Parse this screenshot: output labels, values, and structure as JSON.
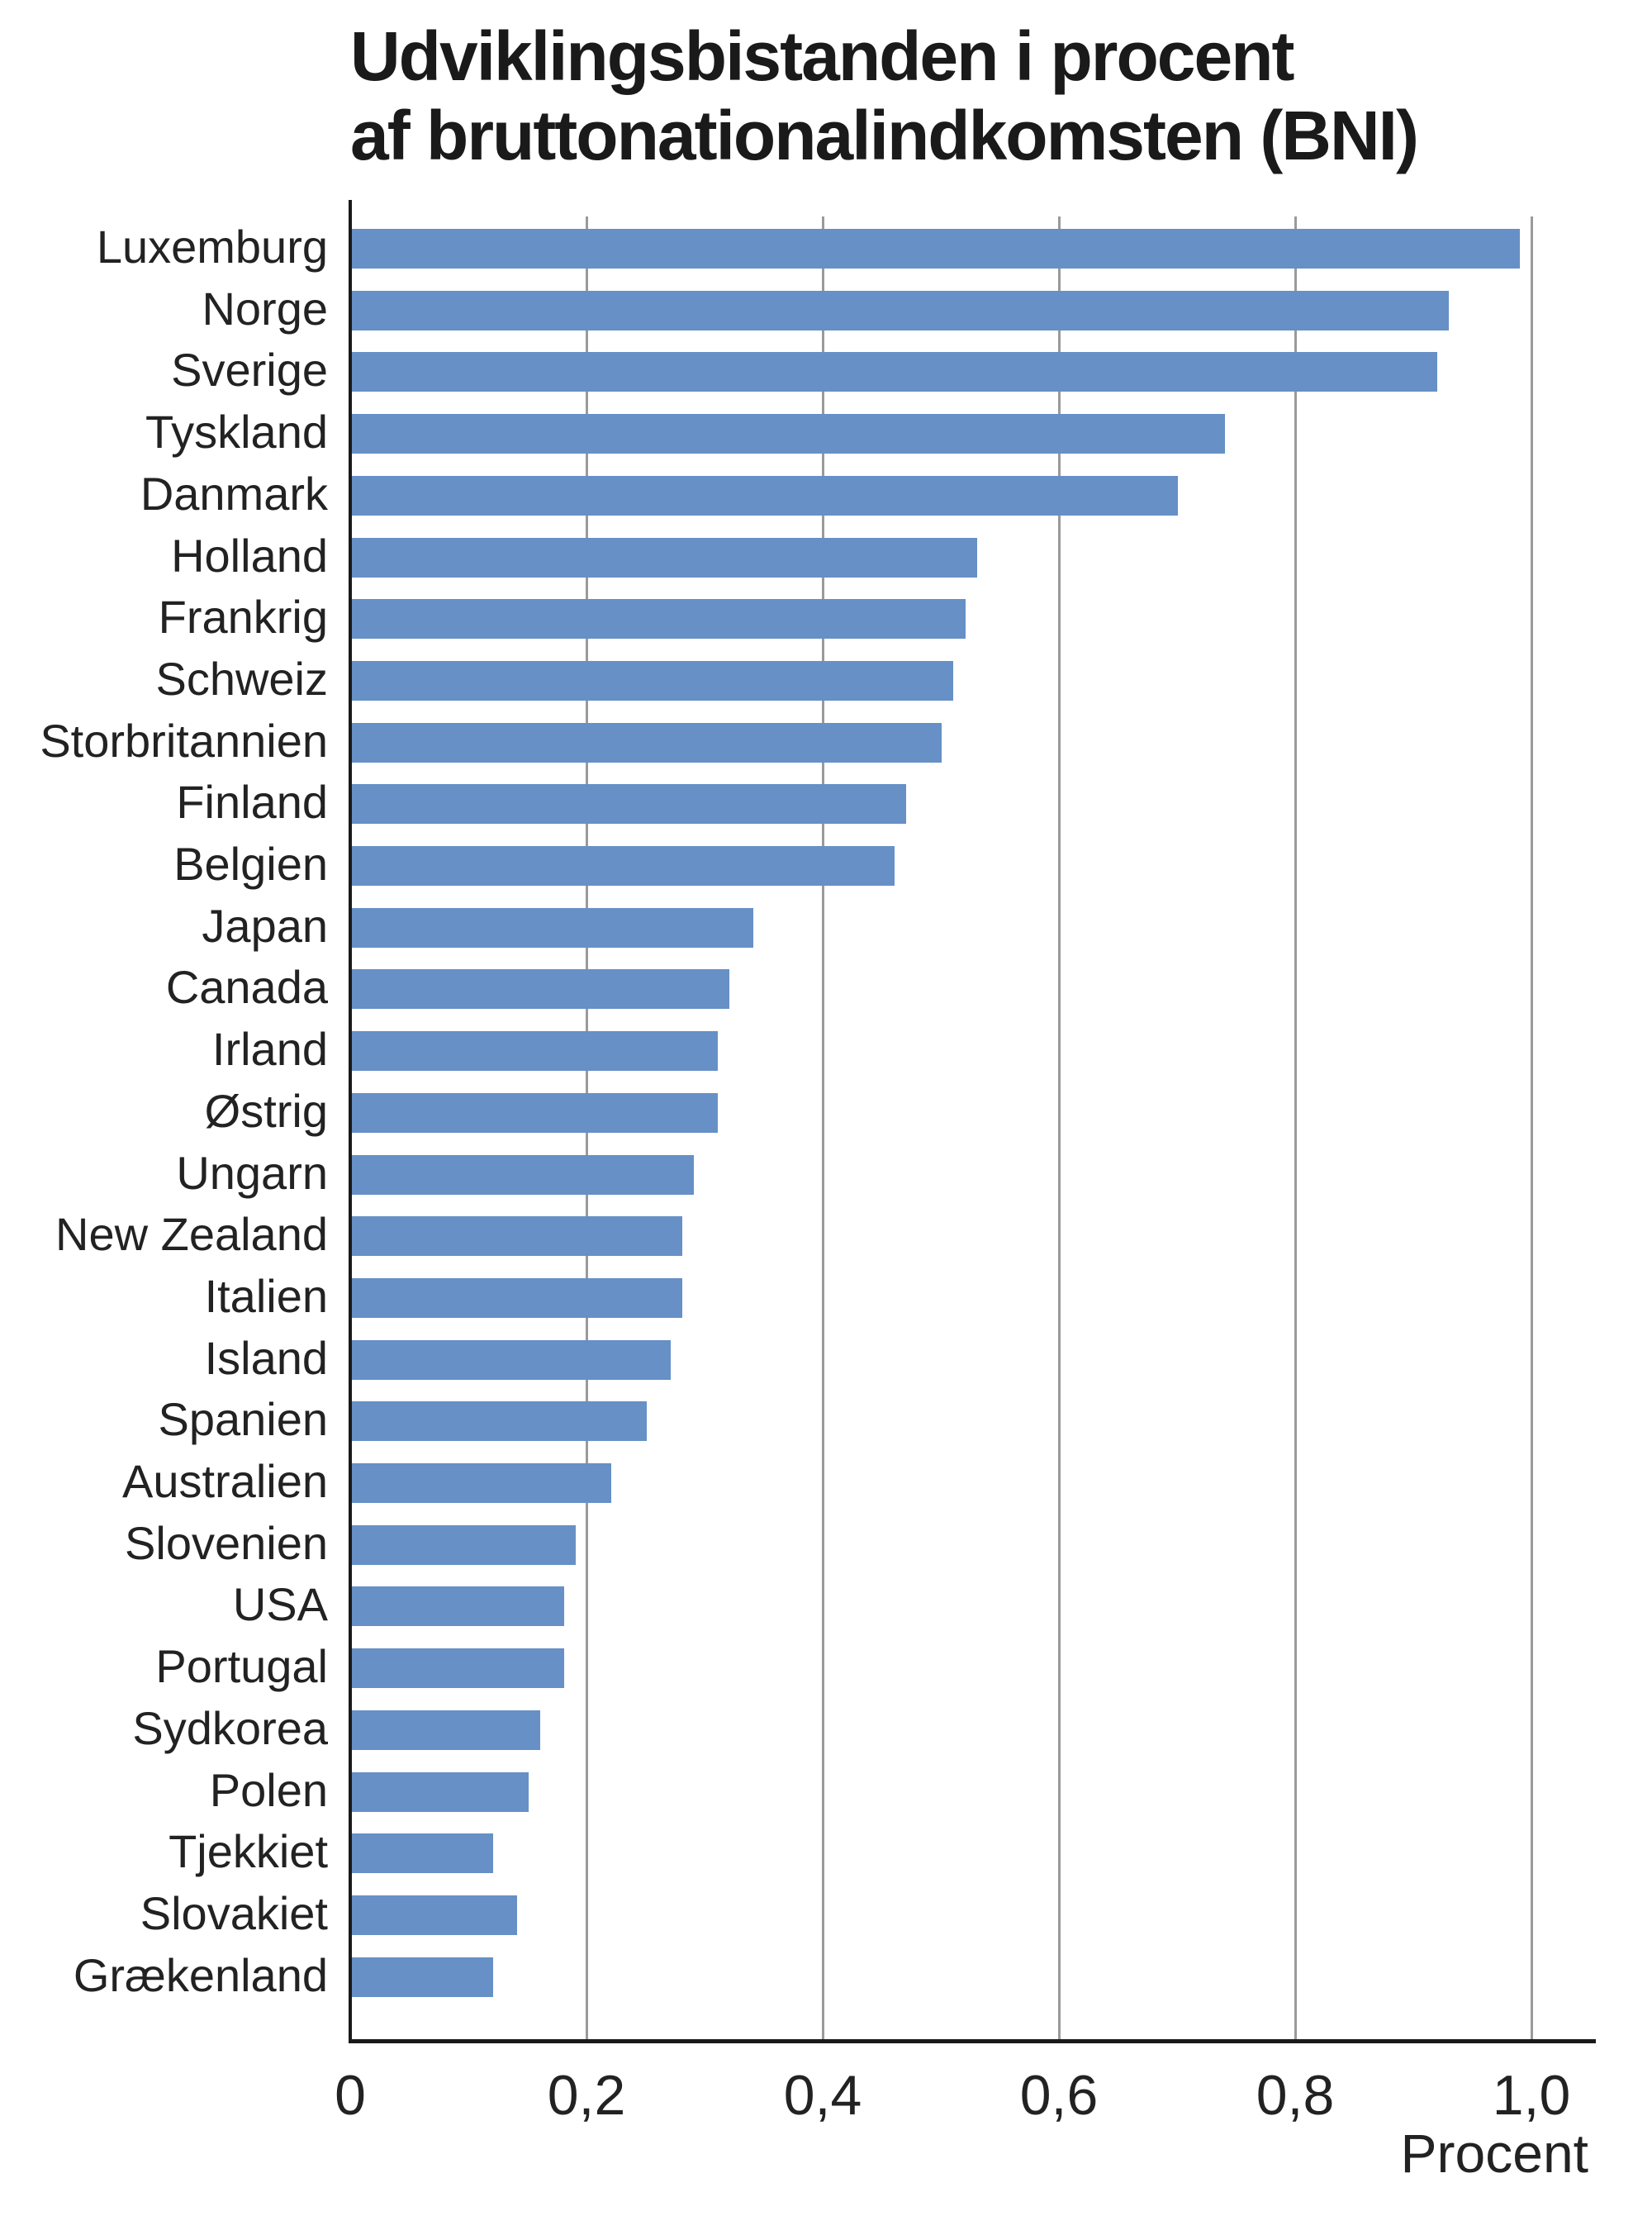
{
  "chart_data": {
    "type": "bar",
    "orientation": "horizontal",
    "title": "Udviklingsbistanden i procent af bruttonationalindkomsten (BNI)",
    "title_lines": [
      "Udviklingsbistanden i procent",
      "af bruttonationalindkomsten (BNI)"
    ],
    "xlabel": "Procent",
    "ylabel": "",
    "xlim": [
      0,
      1.0
    ],
    "xticks": [
      0,
      0.2,
      0.4,
      0.6,
      0.8,
      1.0
    ],
    "xtick_labels": [
      "0",
      "0,2",
      "0,4",
      "0,6",
      "0,8",
      "1,0"
    ],
    "grid": "vertical",
    "legend": null,
    "bar_color": "#6690c6",
    "categories": [
      "Luxemburg",
      "Norge",
      "Sverige",
      "Tyskland",
      "Danmark",
      "Holland",
      "Frankrig",
      "Schweiz",
      "Storbritannien",
      "Finland",
      "Belgien",
      "Japan",
      "Canada",
      "Irland",
      "Østrig",
      "Ungarn",
      "New Zealand",
      "Italien",
      "Island",
      "Spanien",
      "Australien",
      "Slovenien",
      "USA",
      "Portugal",
      "Sydkorea",
      "Polen",
      "Tjekkiet",
      "Slovakiet",
      "Grækenland"
    ],
    "values": [
      0.99,
      0.93,
      0.92,
      0.74,
      0.7,
      0.53,
      0.52,
      0.51,
      0.5,
      0.47,
      0.46,
      0.34,
      0.32,
      0.31,
      0.31,
      0.29,
      0.28,
      0.28,
      0.27,
      0.25,
      0.22,
      0.19,
      0.18,
      0.18,
      0.16,
      0.15,
      0.12,
      0.14,
      0.12
    ]
  }
}
